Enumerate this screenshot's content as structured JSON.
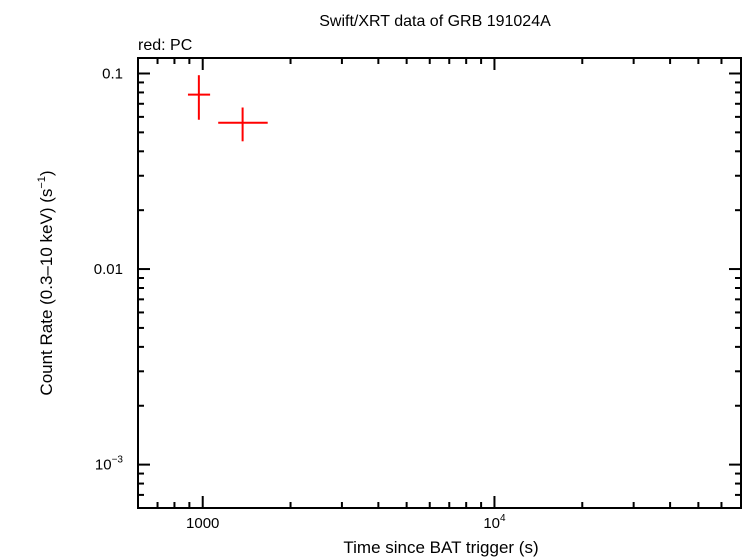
{
  "chart_data": {
    "type": "scatter",
    "title": "Swift/XRT data of GRB 191024A",
    "subtitle": "red: PC",
    "xlabel": "Time since BAT trigger (s)",
    "ylabel": "Count Rate (0.3–10 keV) (s",
    "ylabel_sup": "−1",
    "ylabel_end": ")",
    "x_scale": "log",
    "y_scale": "log",
    "xlim": [
      600,
      70000
    ],
    "ylim": [
      0.0006,
      0.12
    ],
    "x_ticks": [
      {
        "value": 1000,
        "label": "1000"
      },
      {
        "value": 10000,
        "label": "10",
        "sup": "4"
      }
    ],
    "y_ticks": [
      {
        "value": 0.1,
        "label": "0.1"
      },
      {
        "value": 0.01,
        "label": "0.01"
      },
      {
        "value": 0.001,
        "label": "10",
        "sup": "−3"
      }
    ],
    "series": [
      {
        "color": "#ff0000",
        "points": [
          {
            "x": 970,
            "xerr_lo": 890,
            "xerr_hi": 1060,
            "y": 0.078,
            "yerr_lo": 0.058,
            "yerr_hi": 0.098
          },
          {
            "x": 1370,
            "xerr_lo": 1130,
            "xerr_hi": 1670,
            "y": 0.056,
            "yerr_lo": 0.045,
            "yerr_hi": 0.067
          }
        ]
      }
    ]
  }
}
